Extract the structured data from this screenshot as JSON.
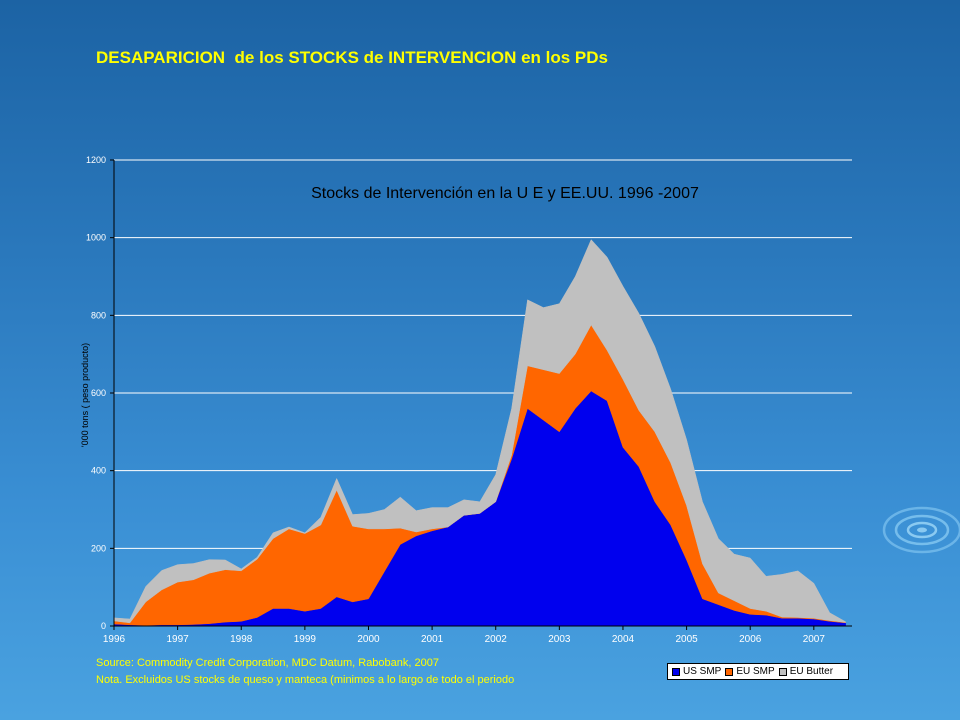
{
  "slide": {
    "title": "DESAPARICION  de los STOCKS de INTERVENCION en los PDs",
    "source": "Source: Commodity Credit Corporation, MDC Datum, Rabobank, 2007",
    "note": "Nota. Excluidos US stocks de queso y manteca (minimos a lo largo de todo el periodo"
  },
  "colors": {
    "us_smp": "#0000ee",
    "eu_smp": "#ff6600",
    "eu_butter": "#c0c0c0",
    "title": "#ffff00",
    "grid": "#ffffff"
  },
  "chart_data": {
    "type": "area",
    "stacked": true,
    "title": "Stocks de Intervención en la U E y EE.UU. 1996 -2007",
    "ylabel": "'000 tons  ( peso producto)",
    "xlabel": "",
    "ylim": [
      0,
      1200
    ],
    "xlim": [
      1996,
      2007.6
    ],
    "yticks": [
      "0",
      "200",
      "400",
      "600",
      "800",
      "1000",
      "1200"
    ],
    "xticks": [
      "1996",
      "1997",
      "1998",
      "1999",
      "2000",
      "2001",
      "2002",
      "2003",
      "2004",
      "2005",
      "2006",
      "2007"
    ],
    "grid": true,
    "legend": "bottom-right",
    "x": [
      1996.0,
      1996.25,
      1996.5,
      1996.75,
      1997.0,
      1997.25,
      1997.5,
      1997.75,
      1998.0,
      1998.25,
      1998.5,
      1998.75,
      1999.0,
      1999.25,
      1999.5,
      1999.75,
      2000.0,
      2000.25,
      2000.5,
      2000.75,
      2001.0,
      2001.25,
      2001.5,
      2001.75,
      2002.0,
      2002.25,
      2002.5,
      2002.75,
      2003.0,
      2003.25,
      2003.5,
      2003.75,
      2004.0,
      2004.25,
      2004.5,
      2004.75,
      2005.0,
      2005.25,
      2005.5,
      2005.75,
      2006.0,
      2006.25,
      2006.5,
      2006.75,
      2007.0,
      2007.25,
      2007.5
    ],
    "series": [
      {
        "name": "US SMP",
        "values": [
          5,
          3,
          2,
          3,
          3,
          4,
          6,
          10,
          12,
          22,
          45,
          45,
          38,
          45,
          75,
          62,
          70,
          140,
          210,
          232,
          245,
          255,
          285,
          290,
          320,
          430,
          560,
          530,
          500,
          560,
          605,
          580,
          460,
          410,
          320,
          260,
          170,
          70,
          55,
          40,
          30,
          28,
          20,
          20,
          18,
          12,
          8
        ]
      },
      {
        "name": "EU SMP",
        "values": [
          8,
          5,
          60,
          90,
          110,
          115,
          130,
          135,
          130,
          150,
          180,
          205,
          200,
          215,
          275,
          195,
          180,
          110,
          42,
          10,
          5,
          0,
          0,
          0,
          0,
          10,
          110,
          130,
          150,
          140,
          170,
          130,
          175,
          145,
          180,
          160,
          140,
          90,
          30,
          25,
          15,
          10,
          3,
          2,
          2,
          2,
          1
        ]
      },
      {
        "name": "EU Butter",
        "values": [
          8,
          10,
          40,
          50,
          45,
          42,
          35,
          25,
          5,
          5,
          15,
          5,
          2,
          20,
          30,
          30,
          40,
          50,
          80,
          55,
          55,
          50,
          40,
          30,
          70,
          120,
          170,
          160,
          180,
          200,
          220,
          240,
          240,
          250,
          220,
          190,
          170,
          160,
          140,
          120,
          130,
          90,
          110,
          120,
          90,
          20,
          2
        ]
      }
    ]
  }
}
